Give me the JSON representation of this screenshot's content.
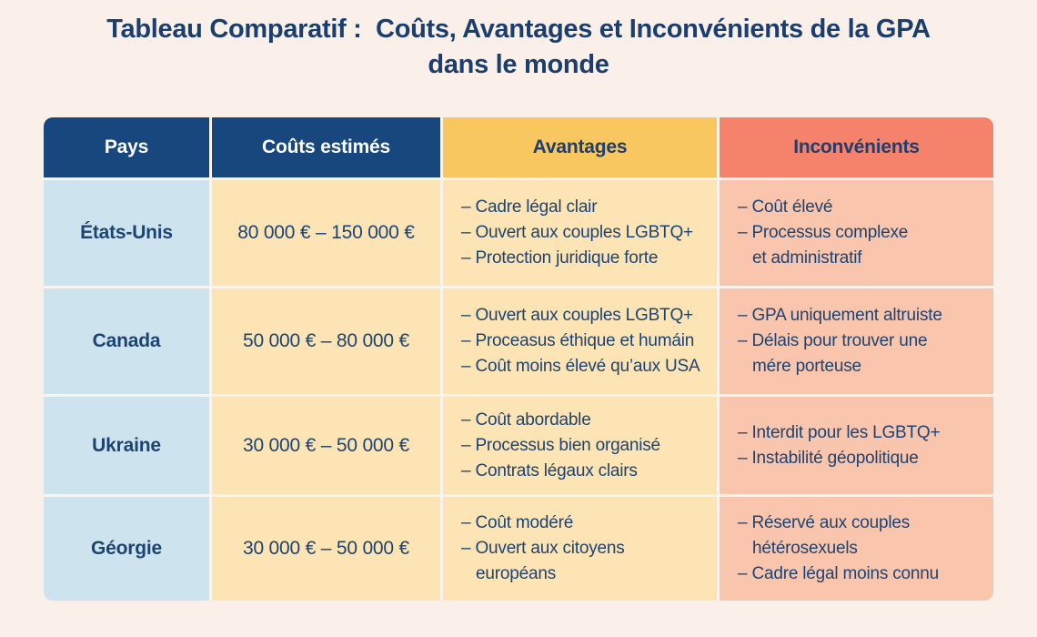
{
  "colors": {
    "page_background": "#faf0e9",
    "cell_gap": "#fbf4ee",
    "title_text": "#1a3e6e",
    "header_navy_bg": "#17477c",
    "header_navy_text": "#ffffff",
    "header_yellow_bg": "#f8c75f",
    "header_salmon_bg": "#f5826b",
    "header_accent_text": "#1c3e70",
    "cell_blue_bg": "#cde4ee",
    "cell_yellow_bg": "#fce4b5",
    "cell_salmon_bg": "#fac5ad",
    "cell_text": "#1d4372"
  },
  "title": "Tableau Comparatif :  Coûts, Avantages et Inconvénients de la GPA\ndans le monde",
  "table": {
    "columns": [
      {
        "label": "Pays"
      },
      {
        "label": "Coûts estimés"
      },
      {
        "label": "Avantages"
      },
      {
        "label": "Inconvénients"
      }
    ],
    "rows": [
      {
        "pays": "États-Unis",
        "couts": "80 000 € – 150 000 €",
        "avantages": [
          "– Cadre légal clair",
          "– Ouvert aux couples LGBTQ+",
          "– Protection juridique forte"
        ],
        "inconvenients": [
          "– Coût élevé",
          "– Processus complexe\net administratif"
        ]
      },
      {
        "pays": "Canada",
        "couts": "50 000 € – 80 000 €",
        "avantages": [
          "– Ouvert aux couples LGBTQ+",
          "– Proceasus éthique et humáin",
          "– Coût moins élevé qu’aux USA"
        ],
        "inconvenients": [
          "– GPA uniquement altruiste",
          "– Délais pour trouver une\nmére porteuse"
        ]
      },
      {
        "pays": "Ukraine",
        "couts": "30 000 € – 50 000 €",
        "avantages": [
          "– Coût abordable",
          "– Processus bien organisé",
          "– Contrats légaux clairs"
        ],
        "inconvenients": [
          "– Interdit pour les LGBTQ+",
          "– Instabilité géopolitique"
        ]
      },
      {
        "pays": "Géorgie",
        "couts": "30 000 € – 50 000 €",
        "avantages": [
          "– Coût modéré",
          "– Ouvert aux citoyens\neuropéans"
        ],
        "inconvenients": [
          "– Réservé aux couples\nhétérosexuels",
          "– Cadre légal moins connu"
        ]
      }
    ]
  }
}
